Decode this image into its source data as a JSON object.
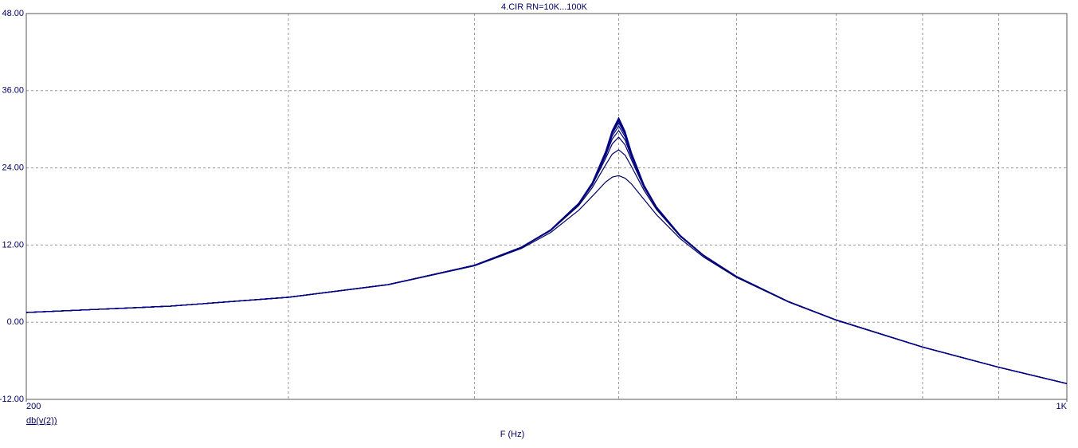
{
  "chart_data": {
    "type": "line",
    "title": "4.CIR RN=10K...100K",
    "x_label": "F (Hz)",
    "y_label": "db(v(2))",
    "xscale": "log",
    "grid": true,
    "x": [
      200,
      250,
      300,
      350,
      400,
      430,
      450,
      470,
      480,
      490,
      495,
      500,
      505,
      510,
      520,
      530,
      550,
      570,
      600,
      650,
      700,
      800,
      900,
      1000
    ],
    "xlim": [
      200,
      1000
    ],
    "xticks": [
      {
        "value": 200,
        "label": "200"
      },
      {
        "value": 1000,
        "label": "1K"
      }
    ],
    "xgrid": [
      300,
      400,
      500,
      600,
      700,
      800,
      900
    ],
    "ylim": [
      -12,
      48
    ],
    "yticks": [
      {
        "value": -12,
        "label": "-12.00"
      },
      {
        "value": 0,
        "label": "0.00"
      },
      {
        "value": 12,
        "label": "12.00"
      },
      {
        "value": 24,
        "label": "24.00"
      },
      {
        "value": 36,
        "label": "36.00"
      },
      {
        "value": 48,
        "label": "48.00"
      }
    ],
    "series": [
      {
        "color": "#000060",
        "values": [
          1.51,
          2.5,
          3.86,
          5.81,
          8.76,
          11.45,
          13.94,
          17.4,
          19.59,
          21.8,
          22.56,
          22.8,
          22.39,
          21.49,
          19.09,
          16.74,
          12.97,
          10.15,
          6.96,
          3.14,
          0.3,
          -3.89,
          -7.02,
          -9.56
        ]
      },
      {
        "color": "#000060",
        "values": [
          1.51,
          2.5,
          3.87,
          5.84,
          8.83,
          11.59,
          14.22,
          18.13,
          20.93,
          24.47,
          26.13,
          26.81,
          25.97,
          24.2,
          20.5,
          17.54,
          13.31,
          10.34,
          7.06,
          3.19,
          0.34,
          -3.87,
          -7.01,
          -9.55
        ]
      },
      {
        "color": "#000070",
        "values": [
          1.51,
          2.5,
          3.88,
          5.84,
          8.85,
          11.63,
          14.3,
          18.32,
          21.33,
          25.47,
          27.72,
          28.79,
          27.56,
          25.22,
          20.92,
          17.76,
          13.4,
          10.39,
          7.09,
          3.2,
          0.34,
          -3.86,
          -7.0,
          -9.54
        ]
      },
      {
        "color": "#000070",
        "values": [
          1.51,
          2.5,
          3.88,
          5.85,
          8.85,
          11.64,
          14.32,
          18.39,
          21.48,
          25.89,
          28.47,
          29.8,
          28.32,
          25.65,
          21.08,
          17.84,
          13.43,
          10.4,
          7.1,
          3.21,
          0.35,
          -3.86,
          -7.0,
          -9.54
        ]
      },
      {
        "color": "#000078",
        "values": [
          1.51,
          2.5,
          3.88,
          5.85,
          8.85,
          11.65,
          14.34,
          18.43,
          21.57,
          26.15,
          28.96,
          30.5,
          28.82,
          25.92,
          21.18,
          17.88,
          13.45,
          10.41,
          7.1,
          3.21,
          0.35,
          -3.86,
          -7.0,
          -9.54
        ]
      },
      {
        "color": "#000078",
        "values": [
          1.51,
          2.5,
          3.88,
          5.85,
          8.86,
          11.65,
          14.35,
          18.46,
          21.62,
          26.33,
          29.3,
          31.0,
          29.16,
          26.09,
          21.24,
          17.91,
          13.46,
          10.42,
          7.11,
          3.22,
          0.35,
          -3.86,
          -7.0,
          -9.54
        ]
      },
      {
        "color": "#000080",
        "values": [
          1.51,
          2.5,
          3.88,
          5.85,
          8.86,
          11.65,
          14.35,
          18.47,
          21.66,
          26.42,
          29.49,
          31.29,
          29.35,
          26.19,
          21.27,
          17.93,
          13.47,
          10.42,
          7.11,
          3.22,
          0.35,
          -3.86,
          -7.0,
          -9.54
        ]
      },
      {
        "color": "#000080",
        "values": [
          1.51,
          2.5,
          3.88,
          5.85,
          8.86,
          11.65,
          14.36,
          18.49,
          21.68,
          26.48,
          29.63,
          31.5,
          29.49,
          26.26,
          21.29,
          17.94,
          13.47,
          10.43,
          7.11,
          3.22,
          0.35,
          -3.86,
          -7.0,
          -9.54
        ]
      },
      {
        "color": "#000088",
        "values": [
          1.51,
          2.5,
          3.88,
          5.85,
          8.86,
          11.66,
          14.36,
          18.49,
          21.69,
          26.54,
          29.76,
          31.71,
          29.62,
          26.32,
          21.31,
          17.95,
          13.48,
          10.43,
          7.11,
          3.22,
          0.35,
          -3.86,
          -7.0,
          -9.54
        ]
      },
      {
        "color": "#000088",
        "values": [
          1.51,
          2.5,
          3.88,
          5.85,
          8.86,
          11.66,
          14.36,
          18.5,
          21.7,
          26.57,
          29.81,
          31.8,
          29.67,
          26.35,
          21.32,
          17.95,
          13.48,
          10.43,
          7.11,
          3.22,
          0.35,
          -3.86,
          -7.0,
          -9.54
        ]
      }
    ]
  }
}
